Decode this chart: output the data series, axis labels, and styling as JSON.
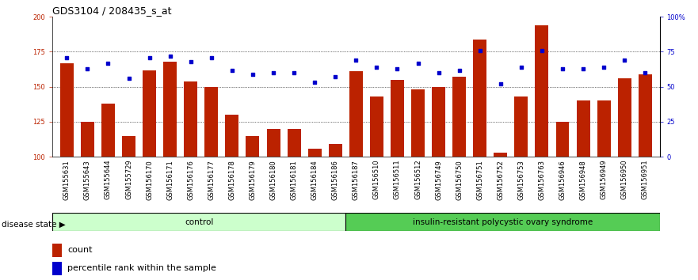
{
  "title": "GDS3104 / 208435_s_at",
  "samples": [
    "GSM155631",
    "GSM155643",
    "GSM155644",
    "GSM155729",
    "GSM156170",
    "GSM156171",
    "GSM156176",
    "GSM156177",
    "GSM156178",
    "GSM156179",
    "GSM156180",
    "GSM156181",
    "GSM156184",
    "GSM156186",
    "GSM156187",
    "GSM156510",
    "GSM156511",
    "GSM156512",
    "GSM156749",
    "GSM156750",
    "GSM156751",
    "GSM156752",
    "GSM156753",
    "GSM156763",
    "GSM156946",
    "GSM156948",
    "GSM156949",
    "GSM156950",
    "GSM156951"
  ],
  "counts": [
    167,
    125,
    138,
    115,
    162,
    168,
    154,
    150,
    130,
    115,
    120,
    120,
    106,
    109,
    161,
    143,
    155,
    148,
    150,
    157,
    184,
    103,
    143,
    194,
    125,
    140,
    140,
    156,
    159
  ],
  "percentiles": [
    171,
    163,
    167,
    156,
    171,
    172,
    168,
    171,
    162,
    159,
    160,
    160,
    153,
    157,
    169,
    164,
    163,
    167,
    160,
    162,
    176,
    152,
    164,
    176,
    163,
    163,
    164,
    169,
    160
  ],
  "control_count": 14,
  "bar_color": "#bb2200",
  "dot_color": "#0000cc",
  "control_color": "#ccffcc",
  "disease_color": "#55cc55",
  "ylim_left": [
    100,
    200
  ],
  "ylim_right": [
    0,
    100
  ],
  "yticks_left": [
    100,
    125,
    150,
    175,
    200
  ],
  "yticks_right": [
    0,
    25,
    50,
    75,
    100
  ],
  "ytick_labels_left": [
    "100",
    "125",
    "150",
    "175",
    "200"
  ],
  "ytick_labels_right": [
    "0",
    "25",
    "50",
    "75",
    "100%"
  ],
  "grid_values": [
    125,
    150,
    175
  ],
  "disease_state_label": "disease state",
  "control_label": "control",
  "disease_label": "insulin-resistant polycystic ovary syndrome",
  "legend_bar_label": "count",
  "legend_dot_label": "percentile rank within the sample",
  "plot_bg_color": "#ffffff",
  "fig_bg_color": "#ffffff",
  "title_fontsize": 9,
  "tick_fontsize": 6,
  "label_fontsize": 7.5,
  "legend_fontsize": 8
}
